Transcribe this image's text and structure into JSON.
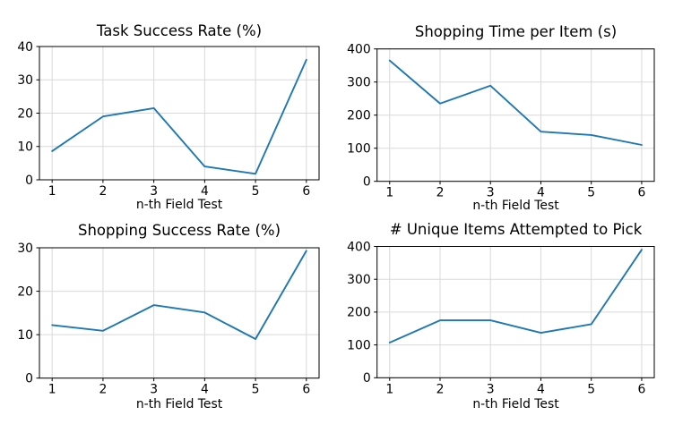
{
  "figure": {
    "background": "#ffffff",
    "line_color": "#1f77b4",
    "grid_color": "#d9d9d9",
    "axis_color": "#000000",
    "grid": true,
    "legend": false
  },
  "chart_data": [
    {
      "type": "line",
      "title": "Task Success Rate (%)",
      "xlabel": "n-th Field Test",
      "ylabel": "",
      "x": [
        1,
        2,
        3,
        4,
        5,
        6
      ],
      "y": [
        8.6,
        19,
        21.5,
        4,
        1.8,
        36
      ],
      "xticks": [
        1,
        2,
        3,
        4,
        5,
        6
      ],
      "yticks": [
        0,
        10,
        20,
        30,
        40
      ],
      "xlim": [
        0.75,
        6.25
      ],
      "ylim": [
        0,
        40
      ],
      "grid": true
    },
    {
      "type": "line",
      "title": "Shopping Time per Item (s)",
      "xlabel": "n-th Field Test",
      "ylabel": "",
      "x": [
        1,
        2,
        3,
        4,
        5,
        6
      ],
      "y": [
        365,
        235,
        289,
        150,
        140,
        110
      ],
      "xticks": [
        1,
        2,
        3,
        4,
        5,
        6
      ],
      "yticks": [
        0,
        100,
        200,
        300,
        400
      ],
      "xlim": [
        0.75,
        6.25
      ],
      "ylim": [
        0,
        400
      ],
      "grid": true
    },
    {
      "type": "line",
      "title": "Shopping Success Rate (%)",
      "xlabel": "n-th Field Test",
      "ylabel": "",
      "x": [
        1,
        2,
        3,
        4,
        5,
        6
      ],
      "y": [
        12.2,
        10.9,
        16.8,
        15.1,
        9,
        29.3
      ],
      "xticks": [
        1,
        2,
        3,
        4,
        5,
        6
      ],
      "yticks": [
        0,
        10,
        20,
        30
      ],
      "xlim": [
        0.75,
        6.25
      ],
      "ylim": [
        0,
        30
      ],
      "grid": true
    },
    {
      "type": "line",
      "title": "# Unique Items Attempted to Pick",
      "xlabel": "n-th Field Test",
      "ylabel": "",
      "x": [
        1,
        2,
        3,
        4,
        5,
        6
      ],
      "y": [
        107,
        175,
        175,
        137,
        163,
        390
      ],
      "xticks": [
        1,
        2,
        3,
        4,
        5,
        6
      ],
      "yticks": [
        0,
        100,
        200,
        300,
        400
      ],
      "xlim": [
        0.75,
        6.25
      ],
      "ylim": [
        0,
        400
      ],
      "grid": true
    }
  ]
}
